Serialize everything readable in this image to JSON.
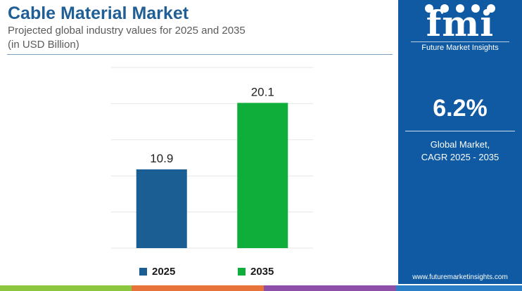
{
  "header": {
    "title": "Cable Material Market",
    "subtitle_line1": "Projected global industry values for 2025 and 2035",
    "subtitle_line2": "(in USD Billion)"
  },
  "chart_data": {
    "type": "bar",
    "categories": [
      "2025",
      "2035"
    ],
    "values": [
      10.9,
      20.1
    ],
    "value_labels": [
      "10.9",
      "20.1"
    ],
    "colors": [
      "#1b5e93",
      "#0fad3a"
    ],
    "ylim": [
      0,
      25
    ],
    "grid": true,
    "legend": {
      "position": "bottom",
      "entries": [
        "2025",
        "2035"
      ]
    }
  },
  "panel": {
    "logo_text": "fmi",
    "logo_subtitle": "Future Market Insights",
    "cagr_value": "6.2%",
    "cagr_line1": "Global Market,",
    "cagr_line2": "CAGR 2025 - 2035",
    "url": "www.futuremarketinsights.com",
    "background_color": "#0f5aa3"
  },
  "bottom_bar_colors": [
    "#8cc63f",
    "#e8733a",
    "#8e4fa8",
    "#2b7fc7"
  ]
}
